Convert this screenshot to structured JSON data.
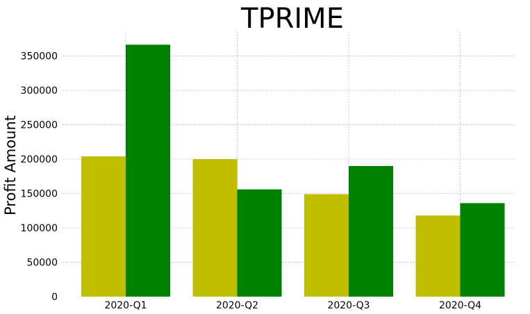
{
  "chart_data": {
    "type": "bar",
    "title": "TPRIME",
    "xlabel": "",
    "ylabel": "Profit Amount",
    "categories": [
      "2020-Q1",
      "2020-Q2",
      "2020-Q3",
      "2020-Q4"
    ],
    "series": [
      {
        "color": "#bfbf00",
        "values": [
          204000,
          200000,
          149000,
          118000
        ]
      },
      {
        "color": "#008000",
        "values": [
          366500,
          156000,
          190000,
          136000
        ]
      }
    ],
    "ylim": [
      0,
      385000
    ],
    "yticks": [
      "0",
      "50000",
      "100000",
      "150000",
      "200000",
      "250000",
      "300000",
      "350000"
    ],
    "ytick_values": [
      0,
      50000,
      100000,
      150000,
      200000,
      250000,
      300000,
      350000
    ],
    "grid": true,
    "legend": "none"
  }
}
